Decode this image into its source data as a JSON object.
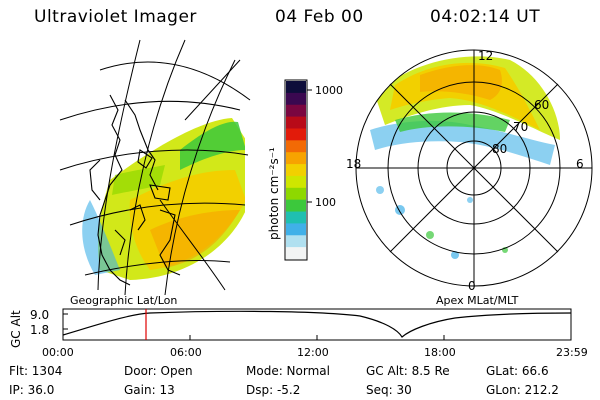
{
  "header": {
    "instrument": "Ultraviolet Imager",
    "date": "04 Feb 00",
    "time": "04:02:14 UT"
  },
  "left_map": {
    "label": "Geographic Lat/Lon"
  },
  "right_map": {
    "label": "Apex  MLat/MLT",
    "mlt_labels": [
      "12",
      "18",
      "6",
      "0"
    ],
    "lat_labels": [
      "60",
      "70",
      "80"
    ]
  },
  "colorbar": {
    "unit_label": "photon cm⁻²s⁻¹",
    "ticks": [
      "1000",
      "100"
    ],
    "colors": [
      "#0d0d3a",
      "#3a0850",
      "#7a0640",
      "#b80a18",
      "#e21b0a",
      "#f26a05",
      "#f7a300",
      "#f2d000",
      "#cfe600",
      "#8ed800",
      "#3cc83c",
      "#1fbfb0",
      "#40b0e8",
      "#b0e0f0",
      "#f2f4f4"
    ]
  },
  "altitude_plot": {
    "ylabel": "GC Alt",
    "yticks": [
      "9.0",
      "1.8"
    ],
    "time_ticks": [
      "00:00",
      "06:00",
      "12:00",
      "18:00",
      "23:59"
    ],
    "current_marker_color": "#e00000"
  },
  "info": {
    "flt": "Flt: 1304",
    "door": "Door: Open",
    "mode": "Mode: Normal",
    "gc_alt": "GC Alt: 8.5 Re",
    "glat": "GLat:  66.6",
    "ip": "IP: 36.0",
    "gain": "Gain: 13",
    "dsp": "Dsp:   -5.2",
    "seq": "Seq: 30",
    "glon": "GLon: 212.2"
  }
}
